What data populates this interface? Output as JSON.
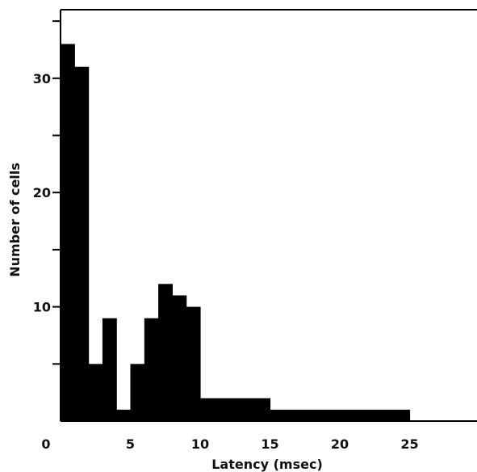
{
  "chart_data": {
    "type": "bar",
    "title": "",
    "xlabel": "Latency (msec)",
    "ylabel": "Number of cells",
    "xlim": [
      0,
      30
    ],
    "ylim": [
      0,
      36
    ],
    "x_ticks": [
      0,
      5,
      10,
      15,
      20,
      25
    ],
    "x_tick_labels": [
      "0",
      "5",
      "10",
      "15",
      "20",
      "25"
    ],
    "y_ticks": [
      10,
      20,
      30
    ],
    "y_tick_labels": [
      "10",
      "20",
      "30"
    ],
    "y_minor_ticks": [
      5,
      15,
      25,
      35
    ],
    "grid": false,
    "bar_color": "#000000",
    "bins": [
      {
        "x_start": 0,
        "x_end": 1,
        "value": 33
      },
      {
        "x_start": 1,
        "x_end": 2,
        "value": 31
      },
      {
        "x_start": 2,
        "x_end": 3,
        "value": 5
      },
      {
        "x_start": 3,
        "x_end": 4,
        "value": 9
      },
      {
        "x_start": 4,
        "x_end": 5,
        "value": 1
      },
      {
        "x_start": 5,
        "x_end": 6,
        "value": 5
      },
      {
        "x_start": 6,
        "x_end": 7,
        "value": 9
      },
      {
        "x_start": 7,
        "x_end": 8,
        "value": 12
      },
      {
        "x_start": 8,
        "x_end": 9,
        "value": 11
      },
      {
        "x_start": 9,
        "x_end": 10,
        "value": 10
      },
      {
        "x_start": 10,
        "x_end": 15,
        "value": 2
      },
      {
        "x_start": 15,
        "x_end": 25,
        "value": 1
      }
    ]
  }
}
